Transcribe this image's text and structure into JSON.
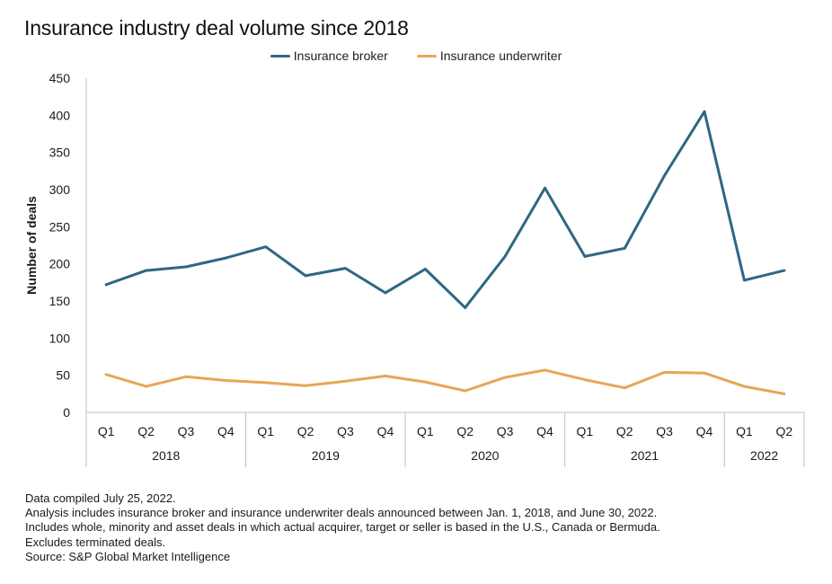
{
  "chart_data": {
    "type": "line",
    "title": "Insurance industry deal volume since 2018",
    "xlabel": "",
    "ylabel": "Number of deals",
    "ylim": [
      0,
      450
    ],
    "yticks": [
      0,
      50,
      100,
      150,
      200,
      250,
      300,
      350,
      400,
      450
    ],
    "grid": false,
    "legend_position": "top-center",
    "categories": [
      "Q1",
      "Q2",
      "Q3",
      "Q4",
      "Q1",
      "Q2",
      "Q3",
      "Q4",
      "Q1",
      "Q2",
      "Q3",
      "Q4",
      "Q1",
      "Q2",
      "Q3",
      "Q4",
      "Q1",
      "Q2"
    ],
    "category_groups": [
      {
        "label": "2018",
        "count": 4
      },
      {
        "label": "2019",
        "count": 4
      },
      {
        "label": "2020",
        "count": 4
      },
      {
        "label": "2021",
        "count": 4
      },
      {
        "label": "2022",
        "count": 2
      }
    ],
    "series": [
      {
        "name": "Insurance broker",
        "color": "#2e6783",
        "values": [
          172,
          191,
          196,
          208,
          223,
          184,
          194,
          161,
          193,
          141,
          210,
          302,
          210,
          221,
          319,
          405,
          178,
          191
        ]
      },
      {
        "name": "Insurance underwriter",
        "color": "#e8a655",
        "values": [
          51,
          35,
          48,
          43,
          40,
          36,
          42,
          49,
          41,
          29,
          47,
          57,
          44,
          33,
          54,
          53,
          35,
          25
        ]
      }
    ]
  },
  "notes": [
    "Data compiled July 25, 2022.",
    "Analysis includes insurance broker and insurance underwriter deals announced between Jan. 1, 2018, and June 30, 2022.",
    "Includes whole, minority and asset deals in which actual acquirer, target or seller is based in the U.S., Canada or Bermuda.",
    "Excludes terminated deals.",
    "Source: S&P Global Market Intelligence"
  ],
  "colors": {
    "axis": "#bfbfbf",
    "text": "#1a1a1a"
  }
}
